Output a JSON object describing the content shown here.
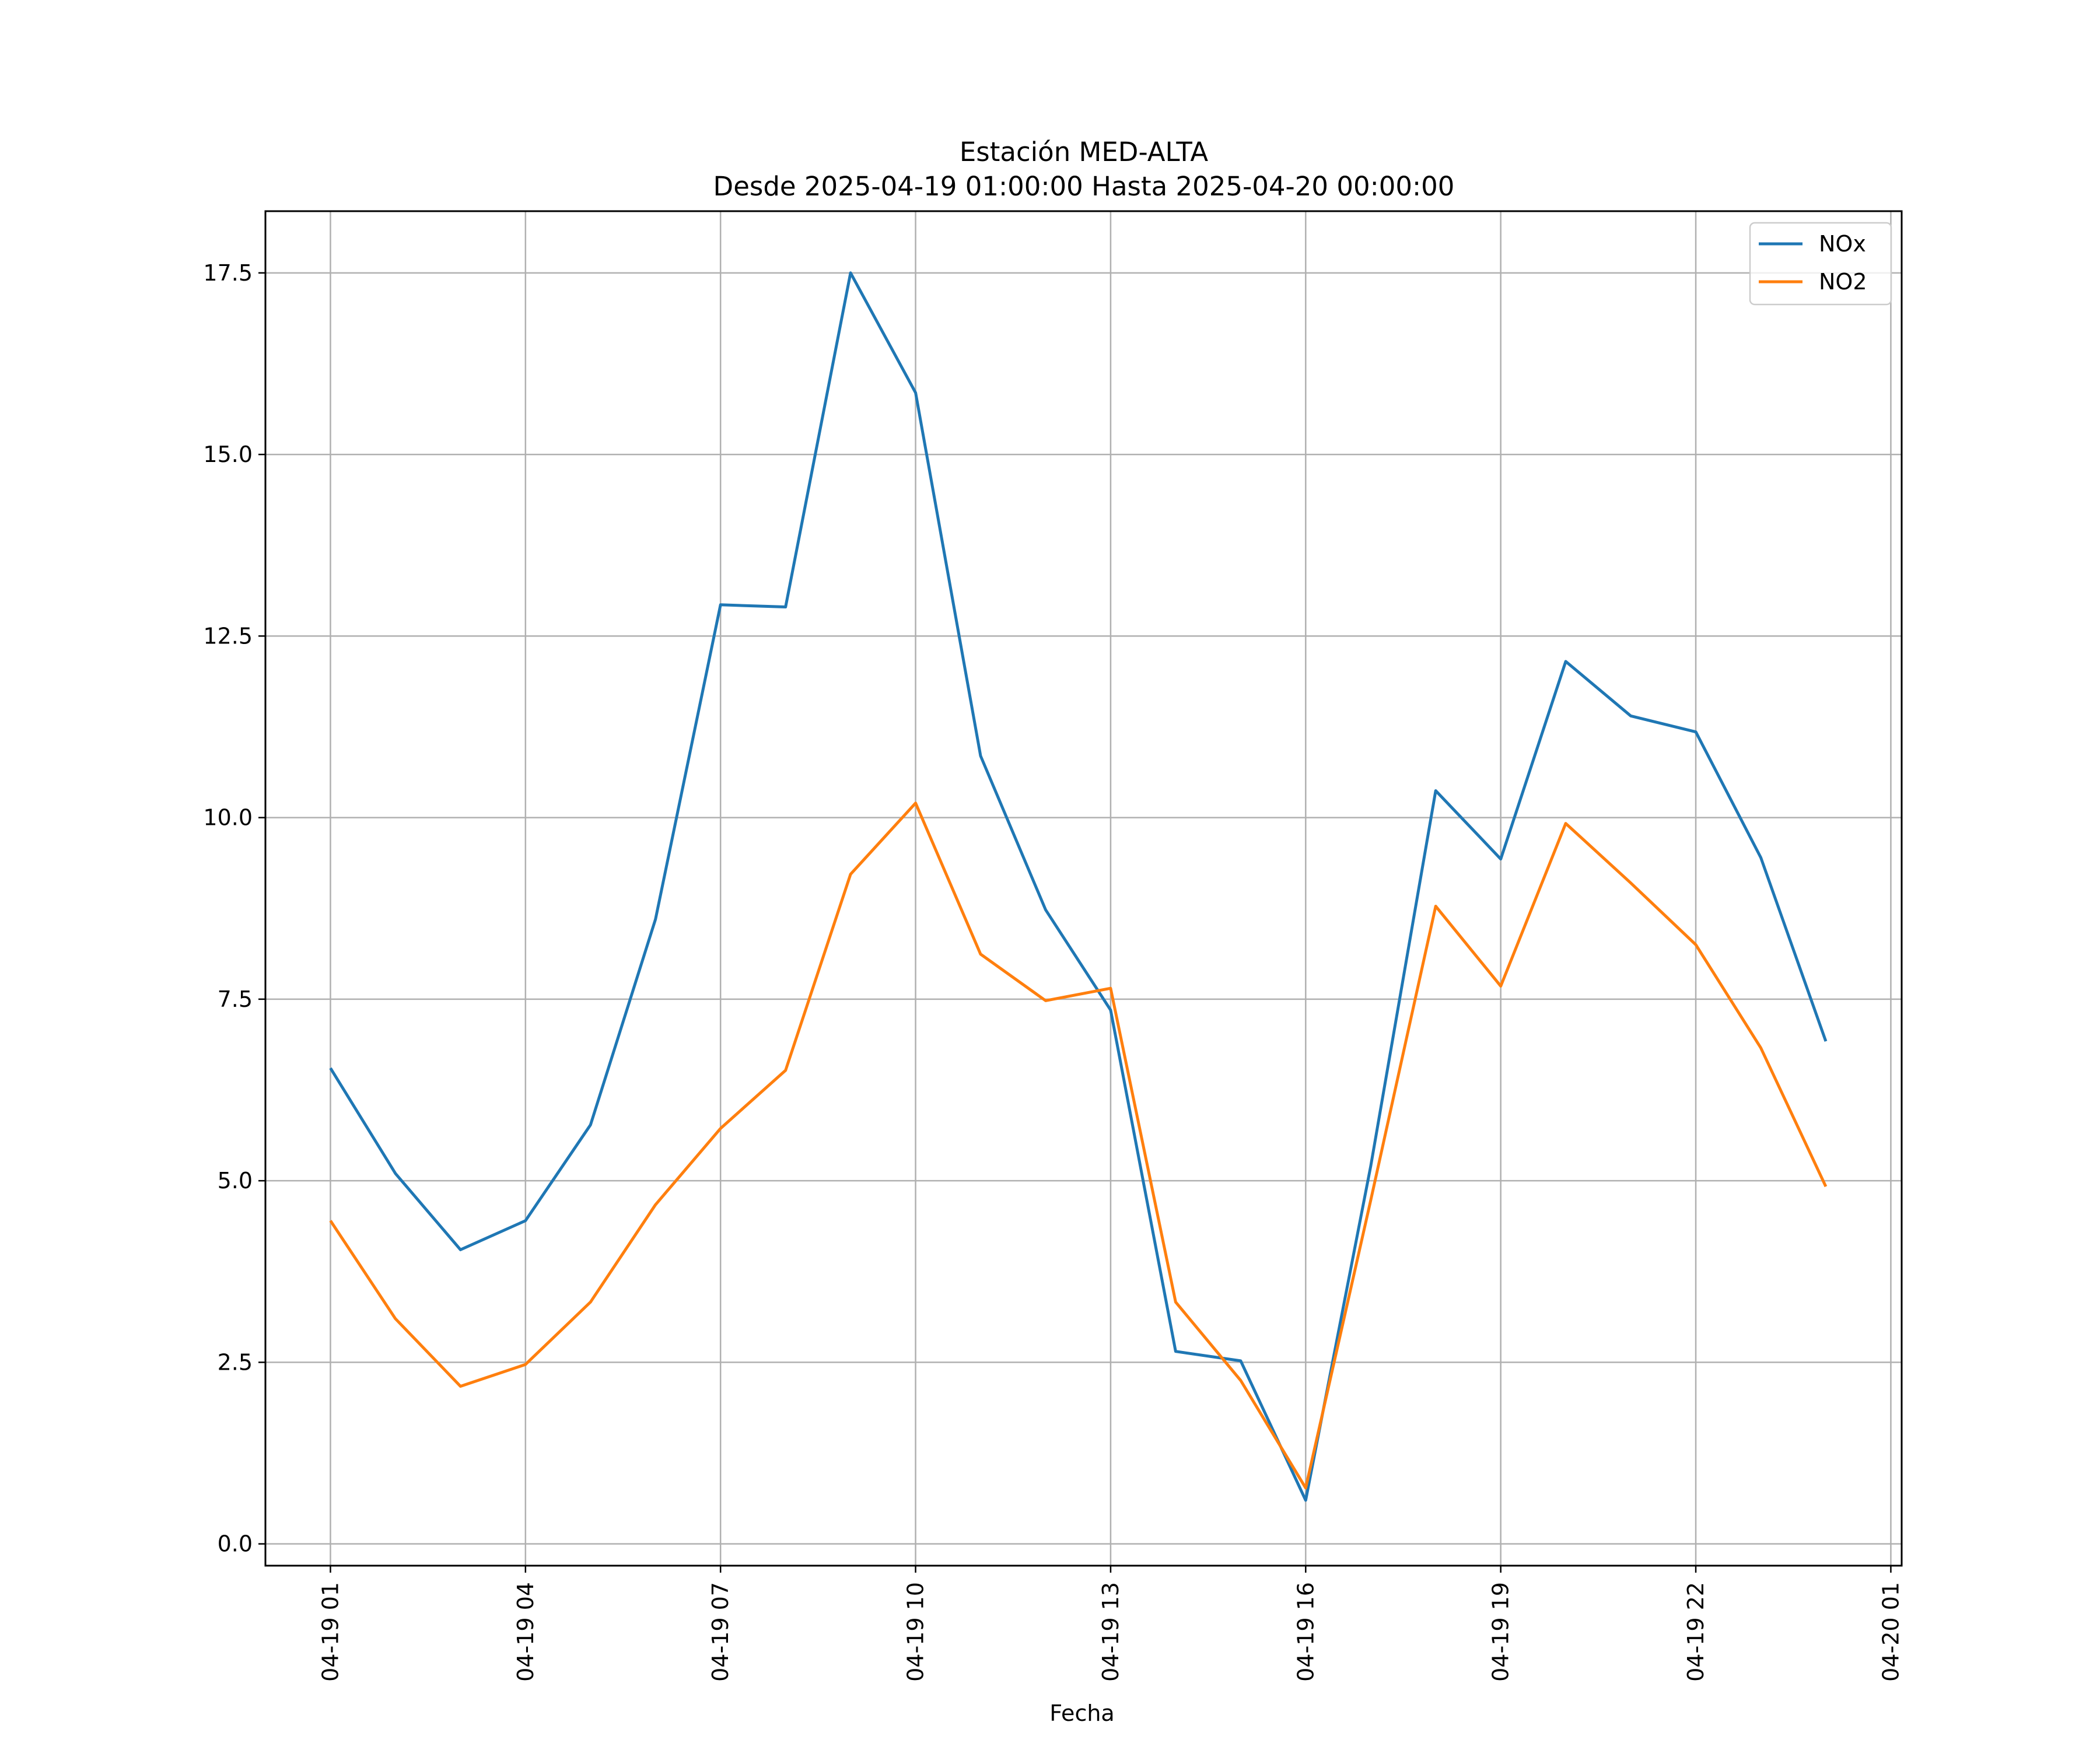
{
  "chart_data": {
    "type": "line",
    "title": "Estación MED-ALTA",
    "subtitle": "Desde 2025-04-19 01:00:00 Hasta 2025-04-20 00:00:00",
    "xlabel": "Fecha",
    "ylabel": "",
    "x": [
      "2025-04-19 01:00",
      "2025-04-19 02:00",
      "2025-04-19 03:00",
      "2025-04-19 04:00",
      "2025-04-19 05:00",
      "2025-04-19 06:00",
      "2025-04-19 07:00",
      "2025-04-19 08:00",
      "2025-04-19 09:00",
      "2025-04-19 10:00",
      "2025-04-19 11:00",
      "2025-04-19 12:00",
      "2025-04-19 13:00",
      "2025-04-19 14:00",
      "2025-04-19 15:00",
      "2025-04-19 16:00",
      "2025-04-19 17:00",
      "2025-04-19 18:00",
      "2025-04-19 19:00",
      "2025-04-19 20:00",
      "2025-04-19 21:00",
      "2025-04-19 22:00",
      "2025-04-19 23:00",
      "2025-04-20 00:00"
    ],
    "series": [
      {
        "name": "NOx",
        "color": "#1f77b4",
        "values": [
          6.55,
          5.1,
          4.05,
          4.45,
          5.77,
          8.6,
          12.93,
          12.9,
          17.5,
          15.85,
          10.85,
          8.73,
          7.35,
          2.65,
          2.52,
          0.6,
          5.2,
          10.37,
          9.43,
          12.15,
          11.4,
          11.18,
          9.45,
          6.92
        ]
      },
      {
        "name": "NO2",
        "color": "#ff7f0e",
        "values": [
          4.45,
          3.1,
          2.17,
          2.47,
          3.33,
          4.67,
          5.72,
          6.52,
          9.22,
          10.2,
          8.12,
          7.48,
          7.65,
          3.33,
          2.25,
          0.77,
          4.73,
          8.78,
          7.68,
          9.92,
          9.1,
          8.25,
          6.83,
          4.92
        ]
      }
    ],
    "xticks": [
      "04-19 01",
      "04-19 04",
      "04-19 07",
      "04-19 10",
      "04-19 13",
      "04-19 16",
      "04-19 19",
      "04-19 22",
      "04-20 01"
    ],
    "yticks": [
      "0.0",
      "2.5",
      "5.0",
      "7.5",
      "10.0",
      "12.5",
      "15.0",
      "17.5"
    ],
    "ylim": [
      -0.3,
      18.35
    ],
    "xlim": [
      "2025-04-19 00:00",
      "2025-04-20 01:10"
    ],
    "grid": true,
    "legend_position": "top-right"
  }
}
